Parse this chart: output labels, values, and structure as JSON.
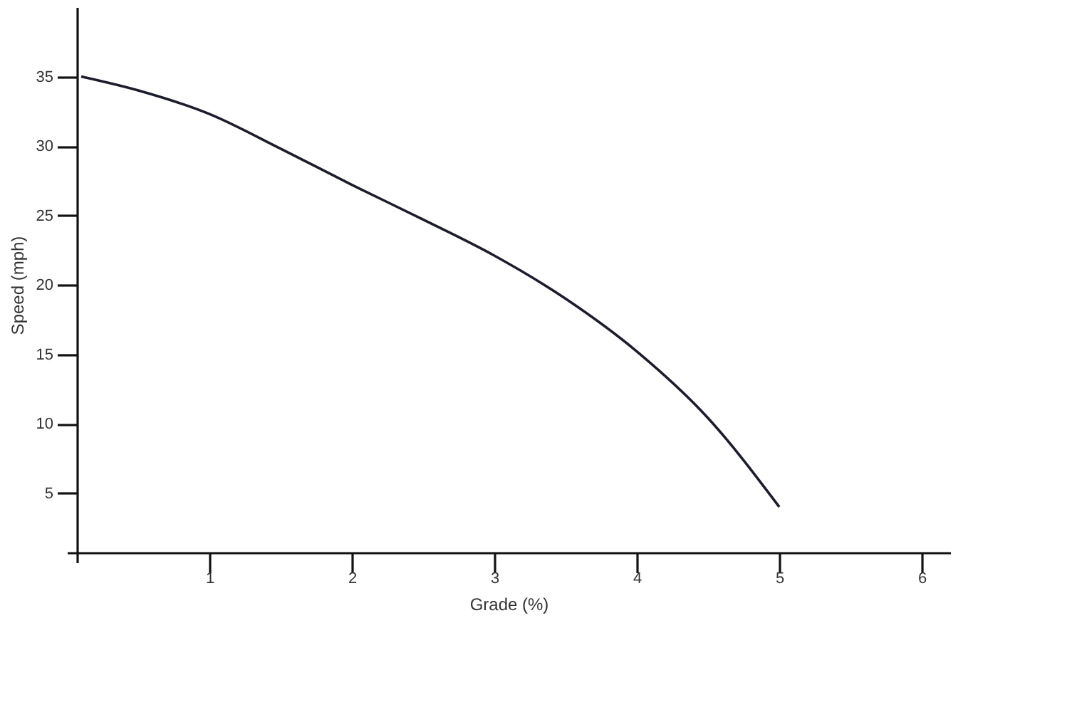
{
  "chart_data": {
    "type": "line",
    "xlabel": "Grade (%)",
    "ylabel": "Speed (mph)",
    "x": [
      0.1,
      0.5,
      1,
      1.5,
      2,
      2.5,
      3,
      3.5,
      4,
      4.5,
      5
    ],
    "series": [
      {
        "color": "#1c1c2c",
        "values": [
          35,
          34,
          32.3,
          29.8,
          27.2,
          24.7,
          22.1,
          19,
          15.2,
          10.4,
          4
        ]
      }
    ],
    "xlim": [
      0,
      6.2
    ],
    "ylim": [
      0,
      40
    ],
    "xticks": [
      1,
      2,
      3,
      4,
      5,
      6
    ],
    "yticks": [
      5,
      10,
      15,
      20,
      25,
      30,
      35
    ],
    "grid": false,
    "legend": false,
    "marker": "none",
    "line_style": "solid"
  }
}
